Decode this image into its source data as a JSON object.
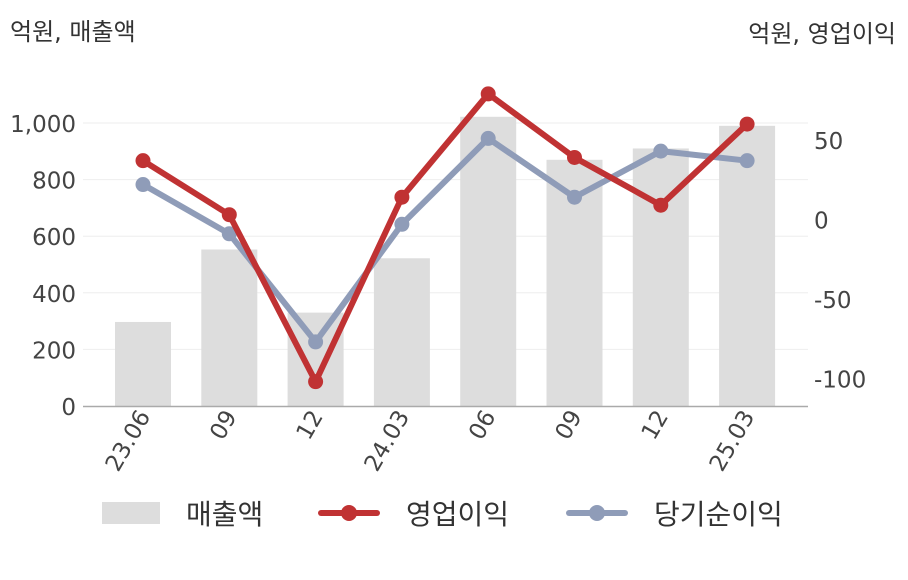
{
  "units": {
    "left": "억원, 매출액",
    "right": "억원, 영업이익"
  },
  "colors": {
    "bar": "#dddddd",
    "op_profit": "#c03233",
    "net_income": "#8f9cb8",
    "axis": "#aaaaaa",
    "grid": "#eeeeee",
    "tick_text": "#444444"
  },
  "chart_data": {
    "type": "bar+line",
    "categories": [
      "23.06",
      "09",
      "12",
      "24.03",
      "06",
      "09",
      "12",
      "25.03"
    ],
    "y_left": {
      "ticks": [
        0,
        200,
        400,
        600,
        800,
        "1,000"
      ],
      "range": [
        0,
        1000
      ]
    },
    "y_right": {
      "ticks": [
        50,
        0,
        -50,
        -100
      ],
      "range": [
        -118,
        60
      ]
    },
    "series": [
      {
        "name": "매출액",
        "type": "bar",
        "axis": "left",
        "values": [
          297,
          553,
          330,
          522,
          1022,
          870,
          910,
          990
        ]
      },
      {
        "name": "영업이익",
        "type": "line",
        "axis": "right",
        "values": [
          37,
          3,
          -102,
          14,
          79,
          39,
          9,
          60
        ]
      },
      {
        "name": "당기순이익",
        "type": "line",
        "axis": "right",
        "values": [
          22,
          -9,
          -77,
          -3,
          51,
          14,
          43,
          37
        ]
      }
    ],
    "grid": true,
    "legend": "bottom"
  }
}
